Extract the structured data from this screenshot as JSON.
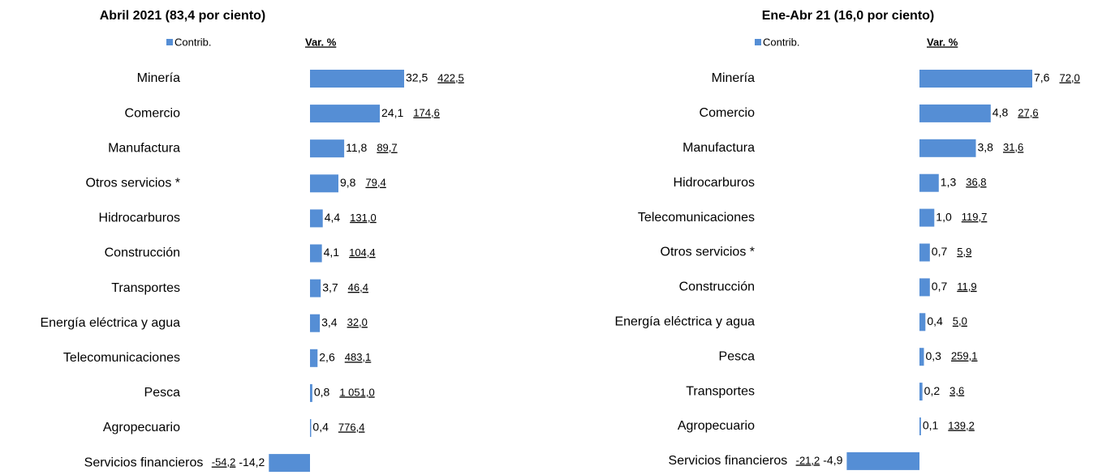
{
  "chart_data": [
    {
      "type": "bar",
      "orientation": "horizontal",
      "title": "Abril 2021 (83,4 por ciento)",
      "legend_label": "Contrib.",
      "var_header": "Var. %",
      "color": "#558ed5",
      "categories": [
        "Minería",
        "Comercio",
        "Manufactura",
        "Otros servicios *",
        "Hidrocarburos",
        "Construcción",
        "Transportes",
        "Energía eléctrica y agua",
        "Telecomunicaciones",
        "Pesca",
        "Agropecuario",
        "Servicios financieros"
      ],
      "values": [
        32.5,
        24.1,
        11.8,
        9.8,
        4.4,
        4.1,
        3.7,
        3.4,
        2.6,
        0.8,
        0.4,
        -14.2
      ],
      "value_labels": [
        "32,5",
        "24,1",
        "11,8",
        "9,8",
        "4,4",
        "4,1",
        "3,7",
        "3,4",
        "2,6",
        "0,8",
        "0,4",
        "-14,2"
      ],
      "var_labels": [
        "422,5",
        "174,6",
        "89,7",
        "79,4",
        "131,0",
        "104,4",
        "46,4",
        "32,0",
        "483,1",
        "1 051,0",
        "776,4",
        "-54,2"
      ]
    },
    {
      "type": "bar",
      "orientation": "horizontal",
      "title": "Ene-Abr 21 (16,0 por ciento)",
      "legend_label": "Contrib.",
      "var_header": "Var. %",
      "color": "#558ed5",
      "categories": [
        "Minería",
        "Comercio",
        "Manufactura",
        "Hidrocarburos",
        "Telecomunicaciones",
        "Otros servicios *",
        "Construcción",
        "Energía eléctrica y agua",
        "Pesca",
        "Transportes",
        "Agropecuario",
        "Servicios financieros"
      ],
      "values": [
        7.6,
        4.8,
        3.8,
        1.3,
        1.0,
        0.7,
        0.7,
        0.4,
        0.3,
        0.2,
        0.1,
        -4.9
      ],
      "value_labels": [
        "7,6",
        "4,8",
        "3,8",
        "1,3",
        "1,0",
        "0,7",
        "0,7",
        "0,4",
        "0,3",
        "0,2",
        "0,1",
        "-4,9"
      ],
      "var_labels": [
        "72,0",
        "27,6",
        "31,6",
        "36,8",
        "119,7",
        "5,9",
        "11,9",
        "5,0",
        "259,1",
        "3,6",
        "139,2",
        "-21,2"
      ]
    }
  ]
}
